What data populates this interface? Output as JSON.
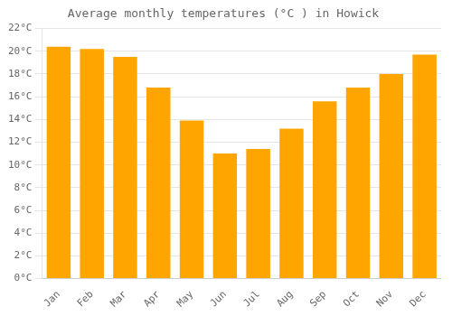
{
  "chart_data": {
    "type": "bar",
    "title": "Average monthly temperatures (°C ) in Howick",
    "categories": [
      "Jan",
      "Feb",
      "Mar",
      "Apr",
      "May",
      "Jun",
      "Jul",
      "Aug",
      "Sep",
      "Oct",
      "Nov",
      "Dec"
    ],
    "values": [
      20.4,
      20.2,
      19.5,
      16.8,
      13.9,
      11.0,
      11.4,
      13.2,
      15.6,
      16.8,
      18.0,
      19.7
    ],
    "color": "#FFA500",
    "ylim": [
      0,
      22
    ],
    "yticks": [
      {
        "value": 0,
        "label": "0°C"
      },
      {
        "value": 2,
        "label": "2°C"
      },
      {
        "value": 4,
        "label": "4°C"
      },
      {
        "value": 6,
        "label": "6°C"
      },
      {
        "value": 8,
        "label": "8°C"
      },
      {
        "value": 10,
        "label": "10°C"
      },
      {
        "value": 12,
        "label": "12°C"
      },
      {
        "value": 14,
        "label": "14°C"
      },
      {
        "value": 16,
        "label": "16°C"
      },
      {
        "value": 18,
        "label": "18°C"
      },
      {
        "value": 20,
        "label": "20°C"
      },
      {
        "value": 22,
        "label": "22°C"
      }
    ],
    "grid": true
  }
}
